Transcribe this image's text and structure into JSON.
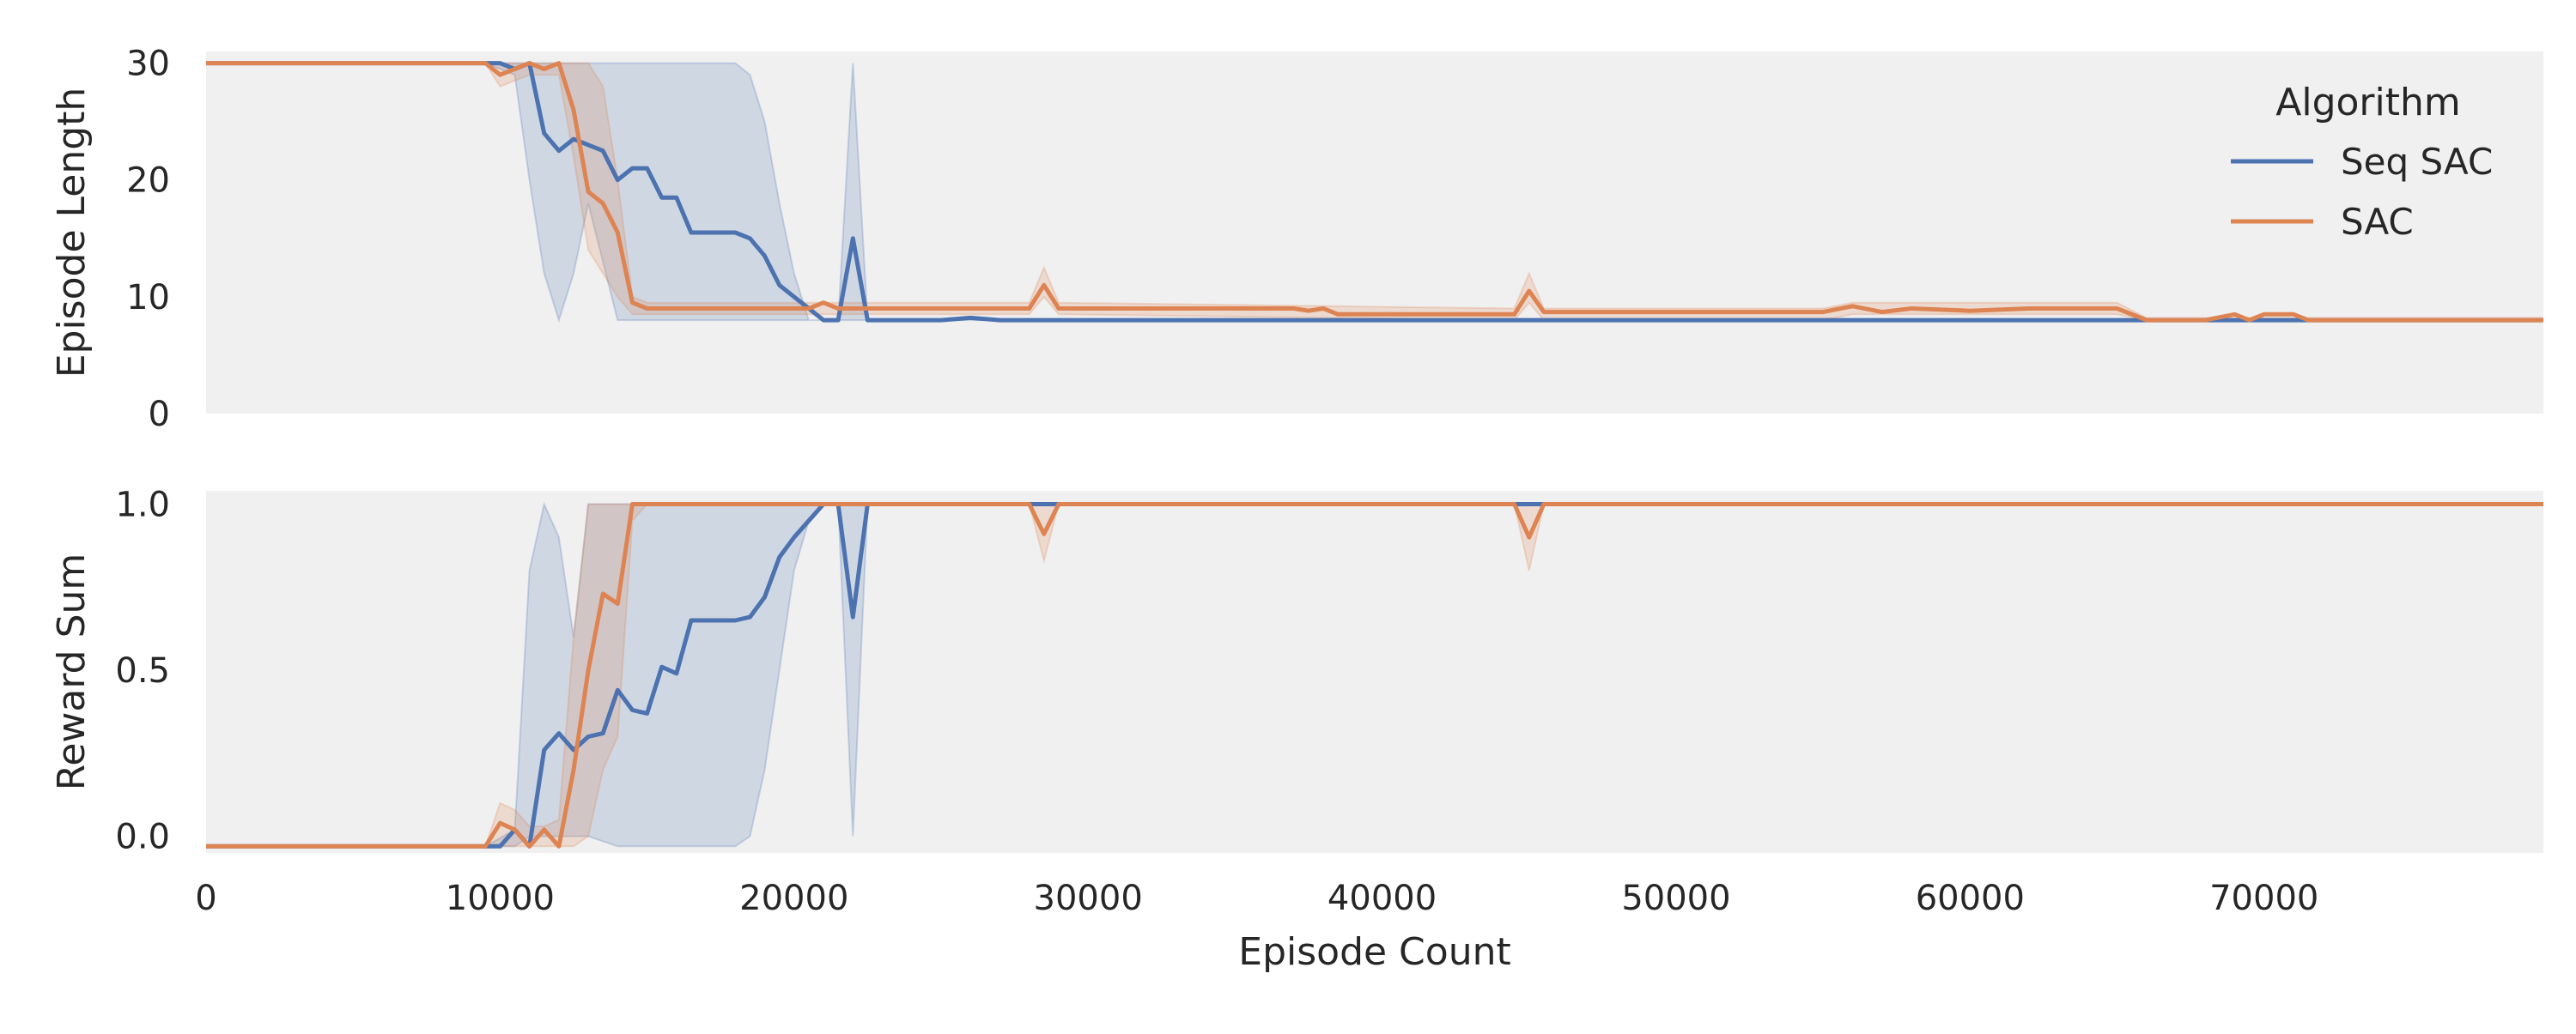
{
  "chart_data": {
    "type": "line",
    "legend": {
      "title": "Algorithm",
      "placement": "top-right",
      "entries": [
        {
          "name": "Seq SAC",
          "color": "#4c72b0"
        },
        {
          "name": "SAC",
          "color": "#dd8452"
        }
      ]
    },
    "xlabel": "Episode Count",
    "xlim": [
      0,
      79500
    ],
    "x_ticks": [
      "0",
      "10000",
      "20000",
      "30000",
      "40000",
      "50000",
      "60000",
      "70000"
    ],
    "x_tick_values": [
      0,
      10000,
      20000,
      30000,
      40000,
      50000,
      60000,
      70000
    ],
    "grid": false,
    "panels": [
      {
        "ylabel": "Episode Length",
        "ylim": [
          0,
          31
        ],
        "y_ticks": [
          "0",
          "10",
          "20",
          "30"
        ],
        "y_tick_values": [
          0,
          10,
          20,
          30
        ],
        "series": [
          {
            "name": "Seq SAC",
            "color": "#4c72b0",
            "points": [
              [
                0,
                30
              ],
              [
                9500,
                30
              ],
              [
                10000,
                30
              ],
              [
                10500,
                29.5
              ],
              [
                11000,
                30
              ],
              [
                11500,
                24
              ],
              [
                12000,
                22.5
              ],
              [
                12500,
                23.5
              ],
              [
                13000,
                23
              ],
              [
                13500,
                22.5
              ],
              [
                14000,
                20
              ],
              [
                14500,
                21
              ],
              [
                15000,
                21
              ],
              [
                15500,
                18.5
              ],
              [
                16000,
                18.5
              ],
              [
                16500,
                15.5
              ],
              [
                17000,
                15.5
              ],
              [
                17500,
                15.5
              ],
              [
                18000,
                15.5
              ],
              [
                18500,
                15
              ],
              [
                19000,
                13.5
              ],
              [
                19500,
                11
              ],
              [
                20000,
                10
              ],
              [
                20500,
                9
              ],
              [
                21000,
                8
              ],
              [
                21500,
                8
              ],
              [
                22000,
                15
              ],
              [
                22500,
                8
              ],
              [
                23000,
                8
              ],
              [
                24000,
                8
              ],
              [
                25000,
                8
              ],
              [
                26000,
                8.2
              ],
              [
                27000,
                8
              ],
              [
                28000,
                8
              ],
              [
                79500,
                8
              ]
            ],
            "band_x": [
              0,
              9500,
              10500,
              11000,
              11500,
              12000,
              12500,
              13000,
              14000,
              17000,
              18000,
              18500,
              19000,
              19500,
              20000,
              20500,
              21500,
              22000,
              22500,
              79500
            ],
            "band_low": [
              30,
              30,
              29,
              20,
              12,
              8,
              12,
              18,
              8,
              8,
              8,
              8,
              8,
              8,
              8,
              8,
              8,
              8,
              8,
              8
            ],
            "band_high": [
              30,
              30,
              30,
              30,
              30,
              30,
              30,
              30,
              30,
              30,
              30,
              29,
              25,
              18,
              12,
              8,
              8,
              30,
              8,
              8
            ]
          },
          {
            "name": "SAC",
            "color": "#dd8452",
            "points": [
              [
                0,
                30
              ],
              [
                9500,
                30
              ],
              [
                10000,
                29
              ],
              [
                10500,
                29.5
              ],
              [
                11000,
                30
              ],
              [
                11500,
                29.5
              ],
              [
                12000,
                30
              ],
              [
                12500,
                26
              ],
              [
                13000,
                19
              ],
              [
                13500,
                18
              ],
              [
                14000,
                15.5
              ],
              [
                14500,
                9.5
              ],
              [
                15000,
                9
              ],
              [
                20000,
                9
              ],
              [
                20500,
                9
              ],
              [
                21000,
                9.5
              ],
              [
                21500,
                9
              ],
              [
                27000,
                9
              ],
              [
                28000,
                9
              ],
              [
                28500,
                11
              ],
              [
                29000,
                9
              ],
              [
                37000,
                9
              ],
              [
                37500,
                8.8
              ],
              [
                38000,
                9
              ],
              [
                38500,
                8.5
              ],
              [
                44500,
                8.5
              ],
              [
                45000,
                10.5
              ],
              [
                45500,
                8.7
              ],
              [
                55000,
                8.7
              ],
              [
                56000,
                9.2
              ],
              [
                57000,
                8.7
              ],
              [
                58000,
                9
              ],
              [
                60000,
                8.8
              ],
              [
                62000,
                9
              ],
              [
                64000,
                9
              ],
              [
                65000,
                9
              ],
              [
                66000,
                8
              ],
              [
                68000,
                8
              ],
              [
                69000,
                8.5
              ],
              [
                69500,
                8
              ],
              [
                70000,
                8.5
              ],
              [
                71000,
                8.5
              ],
              [
                71500,
                8
              ],
              [
                79500,
                8
              ]
            ],
            "band_x": [
              0,
              9500,
              10000,
              11000,
              11500,
              12000,
              12500,
              13000,
              13500,
              14000,
              14500,
              15000,
              20000,
              27500,
              28000,
              28500,
              29000,
              44500,
              45000,
              45500,
              55000,
              56000,
              58000,
              62000,
              64000,
              65000,
              66000,
              79500
            ],
            "band_low": [
              30,
              30,
              28,
              29,
              29,
              29,
              22,
              14,
              12,
              10,
              8.5,
              8.5,
              8.5,
              8.5,
              8.5,
              10,
              8.5,
              8,
              9.5,
              8,
              8,
              8.5,
              8.5,
              8.5,
              8.5,
              8.5,
              8,
              8
            ],
            "band_high": [
              30,
              30,
              30,
              30,
              30,
              30,
              30,
              30,
              28,
              20,
              10,
              9.5,
              9.5,
              9.5,
              9.5,
              12.5,
              9.5,
              9,
              12,
              9,
              9,
              9.5,
              9.5,
              9.5,
              9.5,
              9.5,
              8.2,
              8.2
            ]
          }
        ]
      },
      {
        "ylabel": "Reward Sum",
        "ylim": [
          -0.05,
          1.04
        ],
        "y_ticks": [
          "0.0",
          "0.5",
          "1.0"
        ],
        "y_tick_values": [
          0,
          0.5,
          1
        ],
        "series": [
          {
            "name": "Seq SAC",
            "color": "#4c72b0",
            "points": [
              [
                0,
                -0.03
              ],
              [
                9500,
                -0.03
              ],
              [
                10000,
                -0.03
              ],
              [
                10500,
                0.02
              ],
              [
                11000,
                -0.03
              ],
              [
                11500,
                0.26
              ],
              [
                12000,
                0.31
              ],
              [
                12500,
                0.26
              ],
              [
                13000,
                0.3
              ],
              [
                13500,
                0.31
              ],
              [
                14000,
                0.44
              ],
              [
                14500,
                0.38
              ],
              [
                15000,
                0.37
              ],
              [
                15500,
                0.51
              ],
              [
                16000,
                0.49
              ],
              [
                16500,
                0.65
              ],
              [
                17000,
                0.65
              ],
              [
                17500,
                0.65
              ],
              [
                18000,
                0.65
              ],
              [
                18500,
                0.66
              ],
              [
                19000,
                0.72
              ],
              [
                19500,
                0.84
              ],
              [
                20000,
                0.9
              ],
              [
                20500,
                0.95
              ],
              [
                21000,
                1
              ],
              [
                21500,
                1
              ],
              [
                22000,
                0.66
              ],
              [
                22500,
                1
              ],
              [
                23000,
                1
              ],
              [
                79500,
                1
              ]
            ],
            "band_x": [
              0,
              9500,
              10500,
              11000,
              11500,
              12000,
              12500,
              13000,
              14000,
              17000,
              18000,
              18500,
              19000,
              19500,
              20000,
              20500,
              21000,
              21500,
              22000,
              22500,
              79500
            ],
            "band_low": [
              -0.03,
              -0.03,
              -0.03,
              0,
              0,
              0,
              0,
              0,
              -0.03,
              -0.03,
              -0.03,
              0,
              0.2,
              0.5,
              0.8,
              0.95,
              1,
              1,
              0,
              1,
              1
            ],
            "band_high": [
              -0.03,
              -0.03,
              0.02,
              0.8,
              1,
              0.9,
              0.6,
              1,
              1,
              1,
              1,
              1,
              1,
              1,
              1,
              1,
              1,
              1,
              1,
              1,
              1
            ]
          },
          {
            "name": "SAC",
            "color": "#dd8452",
            "points": [
              [
                0,
                -0.03
              ],
              [
                9500,
                -0.03
              ],
              [
                10000,
                0.04
              ],
              [
                10500,
                0.02
              ],
              [
                11000,
                -0.03
              ],
              [
                11500,
                0.02
              ],
              [
                12000,
                -0.03
              ],
              [
                12500,
                0.2
              ],
              [
                13000,
                0.5
              ],
              [
                13500,
                0.73
              ],
              [
                14000,
                0.7
              ],
              [
                14500,
                1
              ],
              [
                15000,
                1
              ],
              [
                28000,
                1
              ],
              [
                28500,
                0.91
              ],
              [
                29000,
                1
              ],
              [
                44500,
                1
              ],
              [
                45000,
                0.9
              ],
              [
                45500,
                1
              ],
              [
                79500,
                1
              ]
            ],
            "band_x": [
              0,
              9500,
              10000,
              10500,
              11000,
              11500,
              12000,
              12500,
              13000,
              13500,
              14000,
              14500,
              15000,
              28000,
              28500,
              29000,
              44500,
              45000,
              45500,
              79500
            ],
            "band_low": [
              -0.03,
              -0.03,
              -0.03,
              -0.03,
              -0.03,
              -0.03,
              -0.03,
              -0.03,
              0,
              0.2,
              0.3,
              0.95,
              1,
              1,
              0.83,
              1,
              1,
              0.8,
              1,
              1
            ],
            "band_high": [
              -0.03,
              -0.03,
              0.1,
              0.08,
              0.03,
              0.03,
              0.05,
              0.6,
              1,
              1,
              1,
              1,
              1,
              1,
              1,
              1,
              1,
              1,
              1,
              1
            ]
          }
        ]
      }
    ]
  }
}
